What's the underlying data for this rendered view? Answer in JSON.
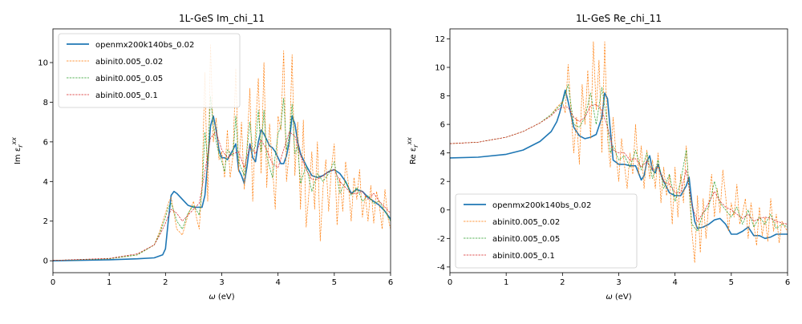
{
  "chart_data": [
    {
      "type": "line",
      "title": "1L-GeS Im_chi_11",
      "xlabel": "ω (eV)",
      "ylabel": "Im ε_r^xx",
      "xlim": [
        0,
        6
      ],
      "ylim": [
        -0.6,
        11.7
      ],
      "xticks": [
        0,
        1,
        2,
        3,
        4,
        5,
        6
      ],
      "yticks": [
        0,
        2,
        4,
        6,
        8,
        10
      ],
      "legend_position": "upper-left",
      "grid": false,
      "series": [
        {
          "name": "openmx200k140bs_0.02",
          "color": "#1f77b4",
          "style": "solid",
          "x": [
            0,
            1,
            1.5,
            1.8,
            1.95,
            2.0,
            2.05,
            2.1,
            2.15,
            2.2,
            2.3,
            2.4,
            2.5,
            2.6,
            2.65,
            2.7,
            2.75,
            2.8,
            2.85,
            2.9,
            2.95,
            3.0,
            3.05,
            3.1,
            3.2,
            3.25,
            3.3,
            3.35,
            3.4,
            3.45,
            3.5,
            3.55,
            3.6,
            3.65,
            3.7,
            3.75,
            3.8,
            3.85,
            3.9,
            3.95,
            4.0,
            4.05,
            4.1,
            4.15,
            4.2,
            4.25,
            4.3,
            4.35,
            4.4,
            4.5,
            4.6,
            4.7,
            4.8,
            4.9,
            5.0,
            5.1,
            5.2,
            5.3,
            5.4,
            5.5,
            5.6,
            5.7,
            5.8,
            5.9,
            6.0
          ],
          "y": [
            0.0,
            0.05,
            0.1,
            0.15,
            0.3,
            0.6,
            2.0,
            3.3,
            3.5,
            3.4,
            3.1,
            2.8,
            2.7,
            2.7,
            2.7,
            3.3,
            5.0,
            6.8,
            7.3,
            6.6,
            5.6,
            5.2,
            5.2,
            5.1,
            5.6,
            5.9,
            4.6,
            4.3,
            3.9,
            4.8,
            5.9,
            5.2,
            5.0,
            6.0,
            6.6,
            6.4,
            6.1,
            5.8,
            5.7,
            5.5,
            5.2,
            4.9,
            4.9,
            5.3,
            6.0,
            7.3,
            6.9,
            6.0,
            5.4,
            4.8,
            4.3,
            4.2,
            4.3,
            4.5,
            4.6,
            4.4,
            4.0,
            3.4,
            3.6,
            3.5,
            3.2,
            3.0,
            2.8,
            2.5,
            2.1
          ]
        },
        {
          "name": "abinit0.005_0.02",
          "color": "#ff7f0e",
          "style": "dashed",
          "x": [
            0,
            1,
            1.5,
            1.8,
            1.9,
            2.0,
            2.05,
            2.1,
            2.15,
            2.2,
            2.3,
            2.4,
            2.5,
            2.55,
            2.6,
            2.65,
            2.7,
            2.75,
            2.8,
            2.85,
            2.9,
            2.95,
            3.0,
            3.05,
            3.1,
            3.15,
            3.2,
            3.25,
            3.3,
            3.35,
            3.4,
            3.45,
            3.5,
            3.55,
            3.6,
            3.65,
            3.7,
            3.75,
            3.8,
            3.85,
            3.9,
            3.95,
            4.0,
            4.05,
            4.1,
            4.15,
            4.2,
            4.25,
            4.3,
            4.35,
            4.4,
            4.45,
            4.5,
            4.55,
            4.6,
            4.65,
            4.7,
            4.75,
            4.8,
            4.85,
            4.9,
            4.95,
            5.0,
            5.05,
            5.1,
            5.15,
            5.2,
            5.25,
            5.3,
            5.35,
            5.4,
            5.45,
            5.5,
            5.55,
            5.6,
            5.65,
            5.7,
            5.75,
            5.8,
            5.85,
            5.9,
            5.95,
            6.0
          ],
          "y": [
            0.02,
            0.1,
            0.3,
            0.8,
            1.5,
            2.4,
            2.9,
            3.2,
            2.4,
            1.6,
            1.3,
            2.3,
            3.0,
            2.2,
            1.6,
            3.8,
            9.5,
            3.0,
            10.9,
            6.0,
            7.2,
            5.1,
            5.5,
            4.2,
            6.6,
            4.2,
            5.3,
            9.7,
            4.5,
            7.0,
            3.6,
            5.8,
            8.7,
            3.0,
            6.7,
            9.2,
            4.4,
            10.0,
            3.7,
            6.9,
            4.8,
            2.6,
            7.3,
            6.6,
            10.6,
            4.0,
            5.5,
            10.4,
            4.3,
            7.0,
            2.6,
            7.1,
            1.7,
            3.5,
            5.5,
            2.6,
            6.0,
            1.0,
            3.7,
            5.1,
            2.5,
            4.7,
            5.9,
            1.8,
            4.2,
            2.5,
            5.0,
            3.9,
            2.0,
            4.2,
            3.1,
            4.6,
            2.2,
            3.3,
            2.0,
            3.8,
            1.9,
            3.5,
            2.8,
            1.6,
            3.6,
            2.2,
            1.6
          ]
        },
        {
          "name": "abinit0.005_0.05",
          "color": "#2ca02c",
          "style": "dashed",
          "x": [
            0,
            1,
            1.5,
            1.8,
            1.9,
            2.0,
            2.05,
            2.1,
            2.15,
            2.2,
            2.3,
            2.4,
            2.5,
            2.6,
            2.65,
            2.7,
            2.75,
            2.8,
            2.85,
            2.9,
            2.95,
            3.0,
            3.05,
            3.1,
            3.2,
            3.25,
            3.3,
            3.4,
            3.5,
            3.55,
            3.6,
            3.65,
            3.7,
            3.75,
            3.8,
            3.9,
            4.0,
            4.05,
            4.1,
            4.15,
            4.2,
            4.25,
            4.3,
            4.35,
            4.4,
            4.5,
            4.6,
            4.7,
            4.8,
            4.9,
            5.0,
            5.1,
            5.2,
            5.3,
            5.4,
            5.5,
            5.6,
            5.7,
            5.8,
            5.9,
            6.0
          ],
          "y": [
            0.02,
            0.1,
            0.3,
            0.8,
            1.4,
            2.2,
            2.7,
            2.9,
            2.5,
            2.0,
            1.6,
            2.4,
            2.8,
            2.3,
            3.5,
            6.5,
            5.0,
            8.3,
            6.8,
            6.0,
            5.4,
            5.0,
            4.5,
            5.6,
            5.3,
            7.3,
            5.0,
            4.3,
            7.0,
            5.5,
            5.8,
            7.6,
            5.5,
            7.6,
            5.3,
            4.2,
            6.4,
            6.8,
            8.2,
            5.6,
            6.3,
            7.9,
            5.4,
            5.8,
            3.9,
            4.8,
            3.5,
            4.4,
            4.0,
            4.4,
            5.0,
            3.4,
            4.0,
            3.3,
            3.7,
            3.0,
            3.3,
            2.9,
            3.0,
            2.5,
            2.0
          ]
        },
        {
          "name": "abinit0.005_0.1",
          "color": "#d62728",
          "style": "dashed",
          "x": [
            0,
            1,
            1.5,
            1.8,
            1.9,
            2.0,
            2.1,
            2.2,
            2.3,
            2.4,
            2.5,
            2.6,
            2.7,
            2.8,
            2.9,
            3.0,
            3.1,
            3.2,
            3.3,
            3.4,
            3.5,
            3.6,
            3.7,
            3.8,
            3.9,
            4.0,
            4.1,
            4.2,
            4.3,
            4.4,
            4.5,
            4.6,
            4.7,
            4.8,
            4.9,
            5.0,
            5.1,
            5.2,
            5.3,
            5.4,
            5.5,
            5.6,
            5.7,
            5.8,
            5.9,
            6.0
          ],
          "y": [
            0.02,
            0.12,
            0.35,
            0.8,
            1.3,
            1.9,
            2.6,
            2.4,
            2.0,
            2.3,
            2.6,
            2.9,
            4.5,
            6.2,
            6.5,
            5.6,
            5.2,
            5.4,
            5.5,
            4.7,
            5.8,
            5.4,
            6.1,
            5.6,
            4.9,
            4.7,
            5.6,
            6.5,
            6.3,
            5.3,
            4.6,
            4.1,
            4.1,
            4.3,
            4.5,
            4.6,
            4.0,
            3.7,
            3.4,
            3.4,
            3.5,
            3.1,
            3.4,
            3.0,
            2.7,
            2.4
          ]
        }
      ]
    },
    {
      "type": "line",
      "title": "1L-GeS Re_chi_11",
      "xlabel": "ω (eV)",
      "ylabel": "Re ε_r^xx",
      "xlim": [
        0,
        6
      ],
      "ylim": [
        -4.4,
        12.7
      ],
      "xticks": [
        0,
        1,
        2,
        3,
        4,
        5,
        6
      ],
      "yticks": [
        -4,
        -2,
        0,
        2,
        4,
        6,
        8,
        10,
        12
      ],
      "legend_position": "lower-left",
      "grid": false,
      "series": [
        {
          "name": "openmx200k140bs_0.02",
          "color": "#1f77b4",
          "style": "solid",
          "x": [
            0,
            0.5,
            1.0,
            1.3,
            1.6,
            1.8,
            1.9,
            1.95,
            2.0,
            2.05,
            2.1,
            2.2,
            2.3,
            2.4,
            2.5,
            2.6,
            2.7,
            2.75,
            2.8,
            2.85,
            2.9,
            3.0,
            3.1,
            3.2,
            3.3,
            3.35,
            3.4,
            3.45,
            3.5,
            3.55,
            3.6,
            3.65,
            3.7,
            3.75,
            3.8,
            3.9,
            4.0,
            4.1,
            4.2,
            4.25,
            4.3,
            4.35,
            4.4,
            4.5,
            4.6,
            4.7,
            4.8,
            4.9,
            5.0,
            5.1,
            5.2,
            5.3,
            5.4,
            5.5,
            5.6,
            5.7,
            5.8,
            5.9,
            6.0
          ],
          "y": [
            3.65,
            3.7,
            3.9,
            4.2,
            4.8,
            5.5,
            6.2,
            6.8,
            7.6,
            8.4,
            7.6,
            5.8,
            5.2,
            5.0,
            5.1,
            5.3,
            6.5,
            8.2,
            7.8,
            5.6,
            3.5,
            3.2,
            3.2,
            3.1,
            3.1,
            2.6,
            2.1,
            2.4,
            3.4,
            3.8,
            2.8,
            2.6,
            3.2,
            2.5,
            2.0,
            1.2,
            1.0,
            1.0,
            1.7,
            2.3,
            0.5,
            -0.8,
            -1.3,
            -1.2,
            -1.0,
            -0.7,
            -0.6,
            -1.0,
            -1.7,
            -1.7,
            -1.5,
            -1.2,
            -1.8,
            -1.8,
            -2.0,
            -1.9,
            -1.7,
            -1.7,
            -1.7
          ]
        },
        {
          "name": "abinit0.005_0.02",
          "color": "#ff7f0e",
          "style": "dashed",
          "x": [
            0,
            0.5,
            1.0,
            1.3,
            1.6,
            1.8,
            1.9,
            2.0,
            2.05,
            2.1,
            2.15,
            2.2,
            2.25,
            2.3,
            2.35,
            2.4,
            2.45,
            2.5,
            2.55,
            2.6,
            2.65,
            2.7,
            2.75,
            2.8,
            2.85,
            2.9,
            2.95,
            3.0,
            3.05,
            3.1,
            3.15,
            3.2,
            3.25,
            3.3,
            3.35,
            3.4,
            3.45,
            3.5,
            3.55,
            3.6,
            3.65,
            3.7,
            3.75,
            3.8,
            3.85,
            3.9,
            3.95,
            4.0,
            4.05,
            4.1,
            4.15,
            4.2,
            4.25,
            4.3,
            4.35,
            4.4,
            4.45,
            4.5,
            4.55,
            4.6,
            4.65,
            4.7,
            4.75,
            4.8,
            4.85,
            4.9,
            4.95,
            5.0,
            5.05,
            5.1,
            5.15,
            5.2,
            5.25,
            5.3,
            5.35,
            5.4,
            5.45,
            5.5,
            5.55,
            5.6,
            5.65,
            5.7,
            5.75,
            5.8,
            5.85,
            5.9,
            5.95,
            6.0
          ],
          "y": [
            4.65,
            4.75,
            5.1,
            5.5,
            6.1,
            6.7,
            7.2,
            7.6,
            6.8,
            10.2,
            7.0,
            4.0,
            6.5,
            3.2,
            8.8,
            6.0,
            9.8,
            5.0,
            11.8,
            7.0,
            10.5,
            4.0,
            11.8,
            5.0,
            3.0,
            6.5,
            4.0,
            2.0,
            5.0,
            3.2,
            1.5,
            4.0,
            2.5,
            6.0,
            2.5,
            4.5,
            1.5,
            4.2,
            2.2,
            3.5,
            1.5,
            4.0,
            0.5,
            3.0,
            1.0,
            2.5,
            -1.0,
            3.0,
            -0.5,
            2.5,
            0.5,
            4.5,
            1.5,
            -1.5,
            -3.7,
            1.0,
            -3.0,
            0.8,
            -2.0,
            0.5,
            2.5,
            -0.5,
            1.5,
            -0.2,
            2.8,
            1.0,
            -1.5,
            0.5,
            -0.5,
            1.8,
            -1.0,
            -0.2,
            0.8,
            -2.0,
            0.5,
            -1.0,
            -2.5,
            0.2,
            -1.8,
            -0.5,
            -2.2,
            0.8,
            -1.5,
            -0.3,
            -2.3,
            -0.8,
            -1.2,
            -1.5
          ]
        },
        {
          "name": "abinit0.005_0.05",
          "color": "#2ca02c",
          "style": "dashed",
          "x": [
            0,
            0.5,
            1.0,
            1.3,
            1.6,
            1.8,
            1.9,
            2.0,
            2.1,
            2.2,
            2.3,
            2.4,
            2.5,
            2.6,
            2.7,
            2.8,
            2.85,
            2.9,
            3.0,
            3.1,
            3.2,
            3.3,
            3.4,
            3.5,
            3.6,
            3.7,
            3.8,
            3.9,
            4.0,
            4.1,
            4.2,
            4.3,
            4.4,
            4.5,
            4.6,
            4.7,
            4.8,
            4.9,
            5.0,
            5.1,
            5.2,
            5.3,
            5.4,
            5.5,
            5.6,
            5.7,
            5.8,
            5.9,
            6.0
          ],
          "y": [
            4.65,
            4.75,
            5.1,
            5.5,
            6.1,
            6.7,
            7.1,
            7.5,
            8.8,
            6.0,
            5.8,
            6.5,
            8.2,
            6.0,
            8.6,
            6.0,
            4.0,
            4.5,
            3.5,
            3.8,
            3.0,
            4.2,
            2.8,
            4.0,
            2.2,
            3.5,
            1.5,
            2.5,
            0.6,
            2.0,
            4.2,
            -1.0,
            -1.5,
            -0.2,
            0.2,
            2.0,
            0.5,
            0.0,
            -0.5,
            0.2,
            -1.0,
            0.0,
            -1.2,
            -0.5,
            -1.0,
            -0.3,
            -1.3,
            -1.0,
            -1.2
          ]
        },
        {
          "name": "abinit0.005_0.1",
          "color": "#d62728",
          "style": "dashed",
          "x": [
            0,
            0.5,
            1.0,
            1.3,
            1.6,
            1.8,
            1.9,
            2.0,
            2.1,
            2.2,
            2.3,
            2.4,
            2.5,
            2.6,
            2.7,
            2.8,
            2.9,
            3.0,
            3.1,
            3.2,
            3.3,
            3.4,
            3.5,
            3.6,
            3.7,
            3.8,
            3.9,
            4.0,
            4.1,
            4.2,
            4.3,
            4.4,
            4.5,
            4.6,
            4.7,
            4.8,
            4.9,
            5.0,
            5.1,
            5.2,
            5.3,
            5.4,
            5.5,
            5.6,
            5.7,
            5.8,
            5.9,
            6.0
          ],
          "y": [
            4.65,
            4.75,
            5.1,
            5.5,
            6.1,
            6.6,
            7.0,
            7.2,
            7.2,
            6.5,
            6.2,
            6.5,
            7.3,
            7.4,
            7.0,
            5.8,
            4.2,
            4.0,
            4.0,
            3.5,
            3.6,
            3.0,
            3.4,
            2.8,
            3.0,
            2.0,
            1.8,
            1.2,
            1.2,
            2.8,
            0.3,
            -0.8,
            -0.2,
            0.5,
            1.3,
            0.6,
            0.2,
            0.0,
            -0.3,
            -0.6,
            -0.3,
            -0.8,
            -0.6,
            -0.5,
            -0.6,
            -0.8,
            -0.9,
            -1.0
          ]
        }
      ]
    }
  ]
}
